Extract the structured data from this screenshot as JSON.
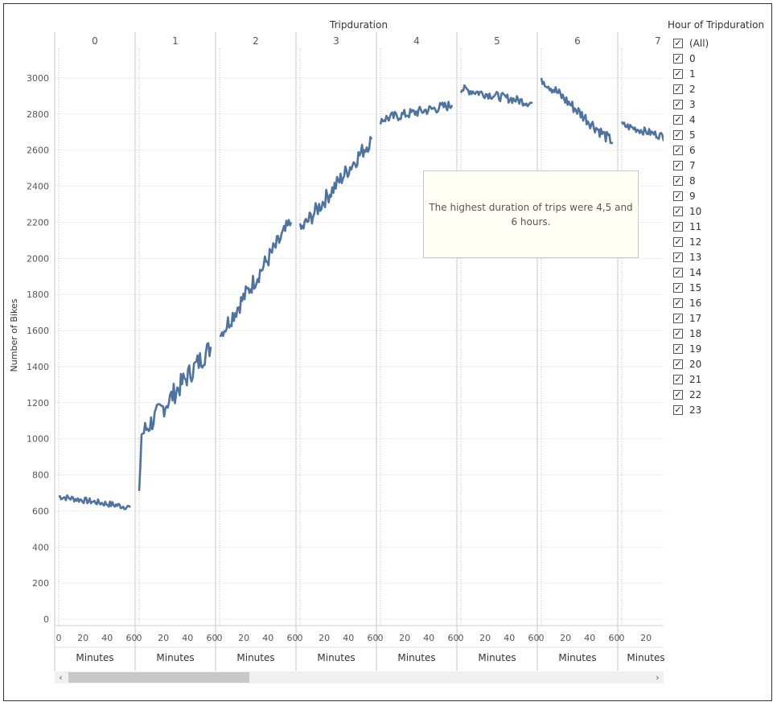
{
  "chart_data": {
    "type": "line",
    "title": "Tripduration",
    "ylabel": "Number of Bikes",
    "xlabel": "Minutes",
    "ylim": [
      0,
      3200
    ],
    "yticks": [
      0,
      200,
      400,
      600,
      800,
      1000,
      1200,
      1400,
      1600,
      1800,
      2000,
      2200,
      2400,
      2600,
      2800,
      3000
    ],
    "xticks": [
      0,
      20,
      40,
      60
    ],
    "xlim": [
      0,
      65
    ],
    "panels": [
      {
        "label": "0",
        "start": 680,
        "end": 620,
        "min": 610,
        "max": 705
      },
      {
        "label": "1",
        "start": 710,
        "end": 1510,
        "min": 710,
        "max": 1530
      },
      {
        "label": "2",
        "start": 1570,
        "end": 2200,
        "min": 1570,
        "max": 2230
      },
      {
        "label": "3",
        "start": 2150,
        "end": 2660,
        "min": 2150,
        "max": 2730
      },
      {
        "label": "4",
        "start": 2770,
        "end": 2850,
        "min": 2630,
        "max": 2910
      },
      {
        "label": "5",
        "start": 2940,
        "end": 2860,
        "min": 2790,
        "max": 3000
      },
      {
        "label": "6",
        "start": 3000,
        "end": 2640,
        "min": 2640,
        "max": 3000
      },
      {
        "label": "7",
        "start": 2740,
        "end": 2630,
        "min": 2600,
        "max": 2760
      }
    ],
    "series": [
      {
        "color": "#4e73a0"
      }
    ],
    "grid": true
  },
  "annotation": {
    "text": "The highest duration of trips were 4,5 and 6 hours."
  },
  "legend": {
    "title": "Hour of Tripduration",
    "items": [
      "(All)",
      "0",
      "1",
      "2",
      "3",
      "4",
      "5",
      "6",
      "7",
      "8",
      "9",
      "10",
      "11",
      "12",
      "13",
      "14",
      "15",
      "16",
      "17",
      "18",
      "19",
      "20",
      "21",
      "22",
      "23"
    ]
  },
  "scrollbar": {
    "left_arrow": "‹",
    "right_arrow": "›"
  },
  "colors": {
    "line": "#4e73a0",
    "grid": "#efefef",
    "divider": "#c8c8c8"
  }
}
